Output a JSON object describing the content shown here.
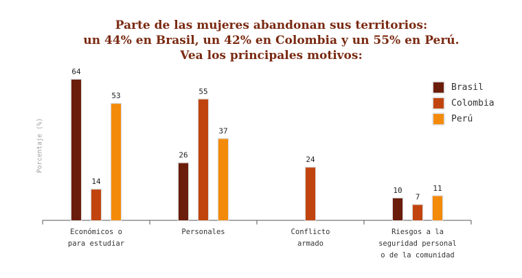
{
  "chart_data": {
    "type": "bar",
    "title_lines": [
      "Parte de las mujeres abandonan sus territorios:",
      "un 44% en Brasil, un 42% en Colombia y un 55% en Perú.",
      "Vea los principales motivos:"
    ],
    "ylabel": "Porcentaje (%)",
    "xlabel": "",
    "ylim": [
      0,
      64
    ],
    "grid": false,
    "legend_position": "top-right",
    "categories": [
      [
        "Económicos o",
        "para estudiar"
      ],
      [
        "Personales"
      ],
      [
        "Conflicto",
        "armado"
      ],
      [
        "Riesgos a la",
        "seguridad personal",
        "o de la comunidad"
      ]
    ],
    "series": [
      {
        "name": "Brasil",
        "color": "#6b1d0b",
        "values": [
          64,
          26,
          null,
          10
        ]
      },
      {
        "name": "Colombia",
        "color": "#c1440e",
        "values": [
          14,
          55,
          24,
          7
        ]
      },
      {
        "name": "Perú",
        "color": "#f48a0a",
        "values": [
          53,
          37,
          null,
          11
        ]
      }
    ]
  }
}
